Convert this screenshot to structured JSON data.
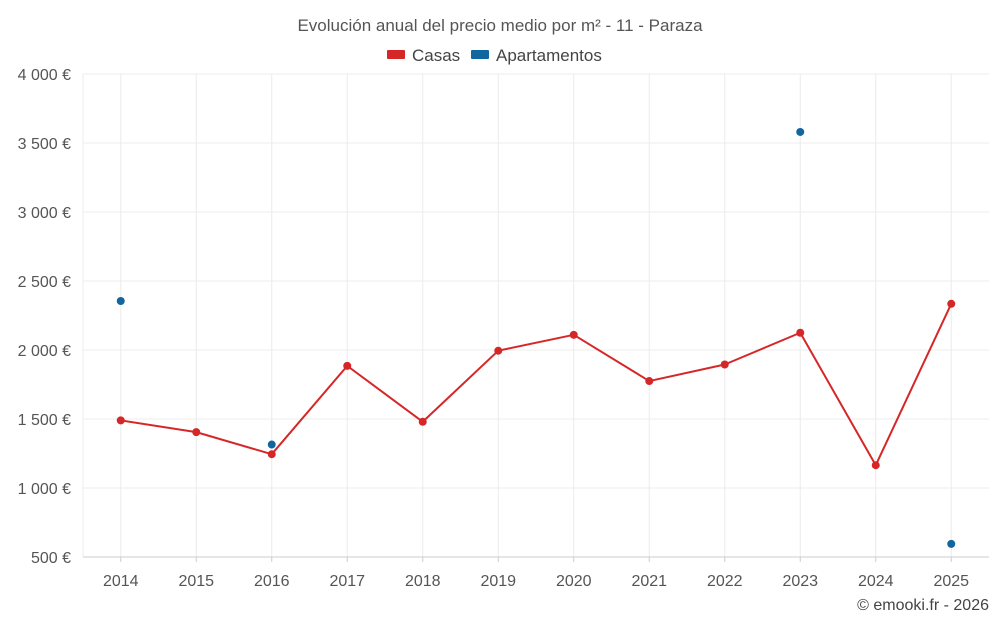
{
  "chart_data": {
    "type": "line",
    "title": "Evolución anual del precio medio por m² - 11 - Paraza",
    "categories": [
      "2014",
      "2015",
      "2016",
      "2017",
      "2018",
      "2019",
      "2020",
      "2021",
      "2022",
      "2023",
      "2024",
      "2025"
    ],
    "series": [
      {
        "name": "Casas",
        "color": "#d62728",
        "values": [
          1490,
          1405,
          1245,
          1885,
          1480,
          1995,
          2110,
          1775,
          1895,
          2125,
          1165,
          2335
        ]
      },
      {
        "name": "Apartamentos",
        "color": "#1266a0",
        "values": [
          2355,
          null,
          1315,
          null,
          null,
          null,
          null,
          null,
          null,
          3580,
          null,
          595
        ]
      }
    ],
    "ylim": [
      500,
      4000
    ],
    "yticks": [
      500,
      1000,
      1500,
      2000,
      2500,
      3000,
      3500,
      4000
    ],
    "ytick_labels": [
      "500 €",
      "1 000 €",
      "1 500 €",
      "2 000 €",
      "2 500 €",
      "3 000 €",
      "3 500 €",
      "4 000 €"
    ],
    "legend_position": "top-center",
    "grid": true
  },
  "credit": "© emooki.fr - 2026"
}
